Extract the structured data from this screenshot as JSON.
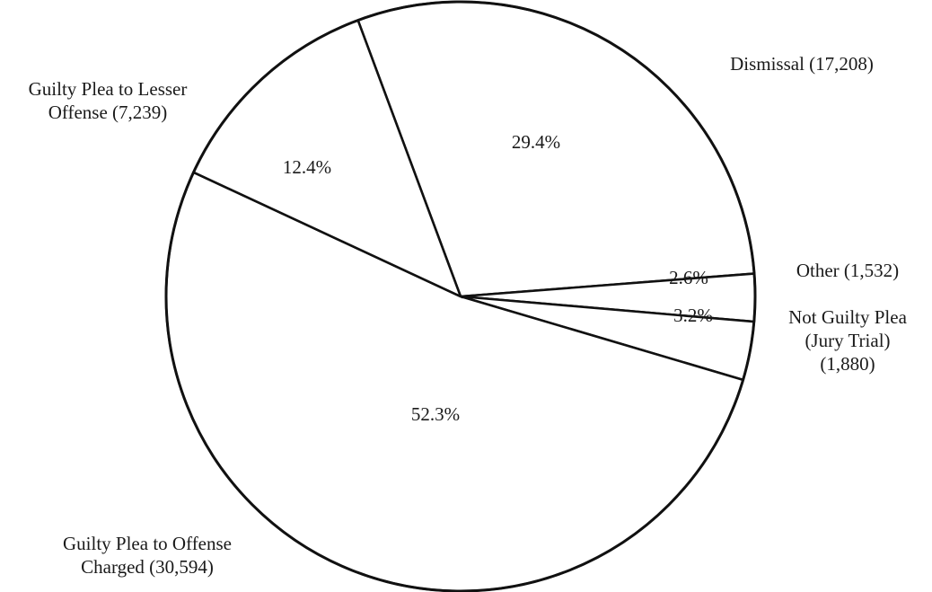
{
  "chart_data": {
    "type": "pie",
    "title": "",
    "slices": [
      {
        "label_lines": [
          "Dismissal (17,208)"
        ],
        "count": 17208,
        "percent_label": "29.4%",
        "value": 29.4
      },
      {
        "label_lines": [
          "Other (1,532)"
        ],
        "count": 1532,
        "percent_label": "2.6%",
        "value": 2.6
      },
      {
        "label_lines": [
          "Not Guilty Plea",
          "(Jury Trial)",
          "(1,880)"
        ],
        "count": 1880,
        "percent_label": "3.2%",
        "value": 3.2
      },
      {
        "label_lines": [
          "Guilty Plea to Offense",
          "Charged (30,594)"
        ],
        "count": 30594,
        "percent_label": "52.3%",
        "value": 52.3
      },
      {
        "label_lines": [
          "Guilty Plea to Lesser",
          "Offense (7,239)"
        ],
        "count": 7239,
        "percent_label": "12.4%",
        "value": 12.4
      }
    ]
  }
}
